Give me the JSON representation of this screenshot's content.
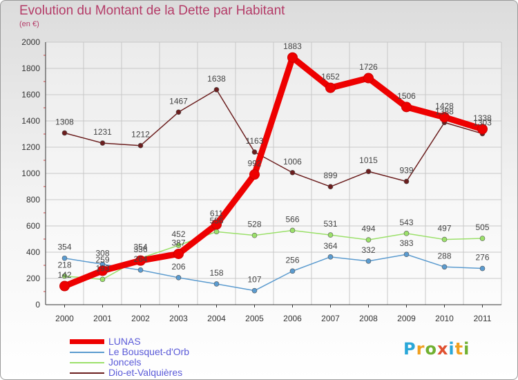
{
  "title": "Evolution du Montant de la Dette par Habitant",
  "unit": "(en €)",
  "logo": {
    "letters": [
      "P",
      "r",
      "o",
      "x",
      "i",
      "t",
      "i"
    ]
  },
  "chart_data": {
    "type": "line",
    "title": "Evolution du Montant de la Dette par Habitant",
    "ylabel": "(en €)",
    "x": [
      "2000",
      "2001",
      "2002",
      "2003",
      "2004",
      "2005",
      "2006",
      "2007",
      "2008",
      "2009",
      "2010",
      "2011"
    ],
    "ylim": [
      0,
      2000
    ],
    "yticks": [
      "0",
      "200",
      "400",
      "600",
      "800",
      "1000",
      "1200",
      "1400",
      "1600",
      "1800",
      "2000"
    ],
    "grid": true,
    "series": [
      {
        "name": "LUNAS",
        "color": "#ee0000",
        "values": [
          142,
          259,
          336,
          387,
          611,
          992,
          1883,
          1652,
          1726,
          1506,
          1428,
          1338
        ]
      },
      {
        "name": "Le Bousquet-d'Orb",
        "color": "#5b9bcf",
        "values": [
          354,
          308,
          264,
          206,
          158,
          107,
          256,
          364,
          332,
          383,
          288,
          276
        ]
      },
      {
        "name": "Joncels",
        "color": "#9be06a",
        "values": [
          218,
          193,
          354,
          452,
          556,
          528,
          566,
          531,
          494,
          543,
          497,
          505
        ]
      },
      {
        "name": "Dio-et-Valquières",
        "color": "#6b1e1e",
        "values": [
          1308,
          1231,
          1212,
          1467,
          1638,
          1163,
          1006,
          899,
          1015,
          939,
          1388,
          1303
        ]
      }
    ]
  }
}
